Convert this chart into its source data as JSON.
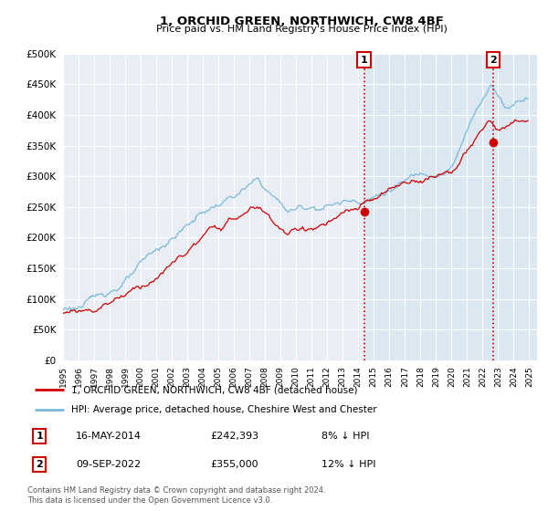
{
  "title": "1, ORCHID GREEN, NORTHWICH, CW8 4BF",
  "subtitle": "Price paid vs. HM Land Registry's House Price Index (HPI)",
  "ylim": [
    0,
    500000
  ],
  "yticks": [
    0,
    50000,
    100000,
    150000,
    200000,
    250000,
    300000,
    350000,
    400000,
    450000,
    500000
  ],
  "background_color": "#ffffff",
  "plot_bg_color": "#e8eef4",
  "plot_bg_color_right": "#dce8f0",
  "grid_color": "#ffffff",
  "hpi_color": "#7ab8d8",
  "price_color": "#cc0000",
  "vline_color": "#cc0000",
  "legend_label_price": "1, ORCHID GREEN, NORTHWICH, CW8 4BF (detached house)",
  "legend_label_hpi": "HPI: Average price, detached house, Cheshire West and Chester",
  "table_rows": [
    {
      "num": "1",
      "date": "16-MAY-2014",
      "price": "£242,393",
      "pct": "8% ↓ HPI"
    },
    {
      "num": "2",
      "date": "09-SEP-2022",
      "price": "£355,000",
      "pct": "12% ↓ HPI"
    }
  ],
  "footer": "Contains HM Land Registry data © Crown copyright and database right 2024.\nThis data is licensed under the Open Government Licence v3.0.",
  "sale1_year": 2014.37,
  "sale1_value": 242393,
  "sale2_year": 2022.67,
  "sale2_value": 355000
}
